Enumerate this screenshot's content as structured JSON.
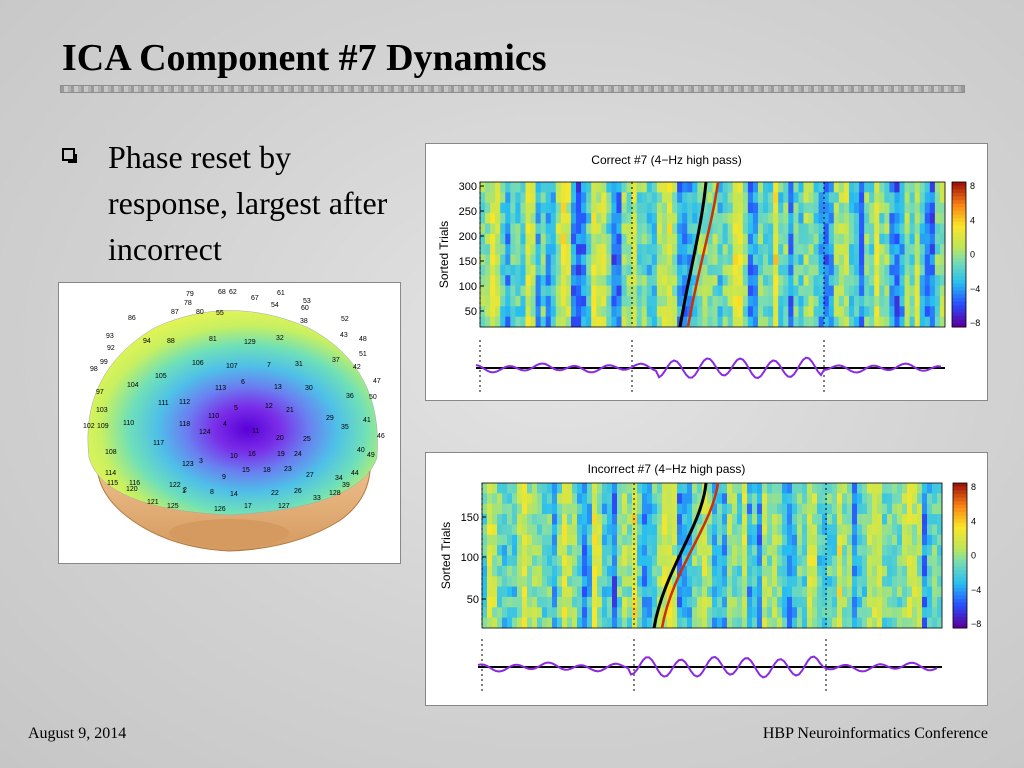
{
  "slide": {
    "title": "ICA Component #7 Dynamics",
    "bullet": "Phase reset by response, largest after incorrect",
    "footer_left": "August 9, 2014",
    "footer_right": "HBP Neuroinformatics Conference"
  },
  "scalp_map": {
    "electrodes": [
      {
        "label": "79",
        "x": 185,
        "y": 295
      },
      {
        "label": "68",
        "x": 217,
        "y": 293
      },
      {
        "label": "62",
        "x": 228,
        "y": 293
      },
      {
        "label": "61",
        "x": 276,
        "y": 294
      },
      {
        "label": "78",
        "x": 183,
        "y": 304
      },
      {
        "label": "67",
        "x": 250,
        "y": 299
      },
      {
        "label": "54",
        "x": 270,
        "y": 306
      },
      {
        "label": "53",
        "x": 302,
        "y": 302
      },
      {
        "label": "60",
        "x": 300,
        "y": 309
      },
      {
        "label": "87",
        "x": 170,
        "y": 313
      },
      {
        "label": "80",
        "x": 195,
        "y": 313
      },
      {
        "label": "55",
        "x": 215,
        "y": 314
      },
      {
        "label": "38",
        "x": 299,
        "y": 322
      },
      {
        "label": "52",
        "x": 340,
        "y": 320
      },
      {
        "label": "86",
        "x": 127,
        "y": 319
      },
      {
        "label": "93",
        "x": 105,
        "y": 337
      },
      {
        "label": "94",
        "x": 142,
        "y": 342
      },
      {
        "label": "88",
        "x": 166,
        "y": 342
      },
      {
        "label": "81",
        "x": 208,
        "y": 340
      },
      {
        "label": "129",
        "x": 243,
        "y": 343
      },
      {
        "label": "32",
        "x": 275,
        "y": 339
      },
      {
        "label": "43",
        "x": 339,
        "y": 336
      },
      {
        "label": "48",
        "x": 358,
        "y": 340
      },
      {
        "label": "92",
        "x": 106,
        "y": 349
      },
      {
        "label": "51",
        "x": 358,
        "y": 355
      },
      {
        "label": "99",
        "x": 99,
        "y": 363
      },
      {
        "label": "98",
        "x": 89,
        "y": 370
      },
      {
        "label": "106",
        "x": 191,
        "y": 364
      },
      {
        "label": "107",
        "x": 225,
        "y": 367
      },
      {
        "label": "7",
        "x": 266,
        "y": 366
      },
      {
        "label": "31",
        "x": 294,
        "y": 365
      },
      {
        "label": "37",
        "x": 331,
        "y": 361
      },
      {
        "label": "42",
        "x": 352,
        "y": 368
      },
      {
        "label": "105",
        "x": 154,
        "y": 377
      },
      {
        "label": "104",
        "x": 126,
        "y": 386
      },
      {
        "label": "6",
        "x": 240,
        "y": 383
      },
      {
        "label": "113",
        "x": 214,
        "y": 389
      },
      {
        "label": "13",
        "x": 273,
        "y": 388
      },
      {
        "label": "30",
        "x": 304,
        "y": 389
      },
      {
        "label": "47",
        "x": 372,
        "y": 382
      },
      {
        "label": "97",
        "x": 95,
        "y": 393
      },
      {
        "label": "36",
        "x": 345,
        "y": 397
      },
      {
        "label": "50",
        "x": 368,
        "y": 398
      },
      {
        "label": "111",
        "x": 157,
        "y": 404
      },
      {
        "label": "112",
        "x": 178,
        "y": 403
      },
      {
        "label": "5",
        "x": 233,
        "y": 409
      },
      {
        "label": "12",
        "x": 264,
        "y": 407
      },
      {
        "label": "21",
        "x": 285,
        "y": 411
      },
      {
        "label": "103",
        "x": 95,
        "y": 411
      },
      {
        "label": "110",
        "x": 207,
        "y": 417
      },
      {
        "label": "29",
        "x": 325,
        "y": 419
      },
      {
        "label": "41",
        "x": 362,
        "y": 421
      },
      {
        "label": "110",
        "x": 122,
        "y": 424
      },
      {
        "label": "118",
        "x": 178,
        "y": 425
      },
      {
        "label": "4",
        "x": 222,
        "y": 425
      },
      {
        "label": "35",
        "x": 340,
        "y": 428
      },
      {
        "label": "102",
        "x": 82,
        "y": 427
      },
      {
        "label": "109",
        "x": 96,
        "y": 427
      },
      {
        "label": "124",
        "x": 198,
        "y": 433
      },
      {
        "label": "11",
        "x": 251,
        "y": 432
      },
      {
        "label": "46",
        "x": 376,
        "y": 437
      },
      {
        "label": "20",
        "x": 275,
        "y": 439
      },
      {
        "label": "25",
        "x": 302,
        "y": 440
      },
      {
        "label": "117",
        "x": 152,
        "y": 444
      },
      {
        "label": "10",
        "x": 229,
        "y": 457
      },
      {
        "label": "16",
        "x": 247,
        "y": 455
      },
      {
        "label": "19",
        "x": 276,
        "y": 455
      },
      {
        "label": "24",
        "x": 293,
        "y": 455
      },
      {
        "label": "40",
        "x": 356,
        "y": 451
      },
      {
        "label": "108",
        "x": 104,
        "y": 453
      },
      {
        "label": "49",
        "x": 366,
        "y": 456
      },
      {
        "label": "3",
        "x": 198,
        "y": 462
      },
      {
        "label": "123",
        "x": 181,
        "y": 465
      },
      {
        "label": "15",
        "x": 241,
        "y": 471
      },
      {
        "label": "18",
        "x": 262,
        "y": 471
      },
      {
        "label": "23",
        "x": 283,
        "y": 470
      },
      {
        "label": "27",
        "x": 305,
        "y": 476
      },
      {
        "label": "34",
        "x": 334,
        "y": 479
      },
      {
        "label": "44",
        "x": 350,
        "y": 474
      },
      {
        "label": "9",
        "x": 221,
        "y": 478
      },
      {
        "label": "114",
        "x": 104,
        "y": 474
      },
      {
        "label": "115",
        "x": 106,
        "y": 484
      },
      {
        "label": "116",
        "x": 128,
        "y": 484
      },
      {
        "label": "39",
        "x": 341,
        "y": 486
      },
      {
        "label": "120",
        "x": 125,
        "y": 490
      },
      {
        "label": "122",
        "x": 168,
        "y": 486
      },
      {
        "label": "2",
        "x": 182,
        "y": 491
      },
      {
        "label": "1",
        "x": 181,
        "y": 492
      },
      {
        "label": "8",
        "x": 209,
        "y": 493
      },
      {
        "label": "14",
        "x": 229,
        "y": 495
      },
      {
        "label": "22",
        "x": 270,
        "y": 494
      },
      {
        "label": "26",
        "x": 293,
        "y": 492
      },
      {
        "label": "33",
        "x": 312,
        "y": 499
      },
      {
        "label": "128",
        "x": 328,
        "y": 494
      },
      {
        "label": "121",
        "x": 146,
        "y": 503
      },
      {
        "label": "125",
        "x": 166,
        "y": 507
      },
      {
        "label": "126",
        "x": 213,
        "y": 510
      },
      {
        "label": "17",
        "x": 243,
        "y": 507
      },
      {
        "label": "127",
        "x": 277,
        "y": 507
      }
    ]
  },
  "chart_data": [
    {
      "type": "heatmap",
      "title": "Correct #7 (4−Hz high pass)",
      "ylabel": "Sorted Trials",
      "y_ticks": [
        "300",
        "250",
        "200",
        "150",
        "100",
        "50"
      ],
      "colorbar_ticks": [
        "8",
        "4",
        "0",
        "−4",
        "−8"
      ],
      "erp_trace": "purple waveform with black mean line"
    },
    {
      "type": "heatmap",
      "title": "Incorrect #7 (4−Hz high pass)",
      "ylabel": "Sorted Trials",
      "y_ticks": [
        "150",
        "100",
        "50"
      ],
      "colorbar_ticks": [
        "8",
        "4",
        "0",
        "−4",
        "−8"
      ],
      "erp_trace": "purple waveform with black mean line"
    }
  ],
  "colors": {
    "background": "#d6d6d6",
    "trace": "#8a2be2",
    "reaction_line": "#d03000"
  }
}
